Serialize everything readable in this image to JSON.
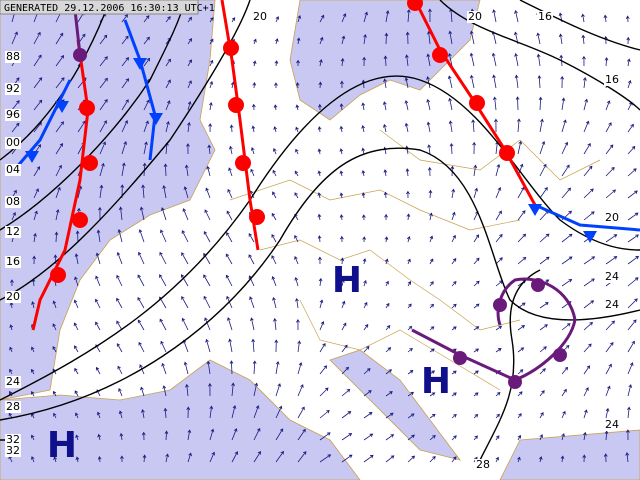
{
  "header": {
    "generated": "GENERATED 29.12.2006 16:30:13 UTC+1"
  },
  "pressure_centers": [
    {
      "label": "H"
    },
    {
      "label": "H"
    },
    {
      "label": "H"
    }
  ],
  "isobar_labels": [
    "20",
    "20",
    "16",
    "16",
    "20",
    "24",
    "24",
    "24",
    "28",
    "88",
    "92",
    "96",
    "00",
    "04",
    "08",
    "12",
    "16",
    "20",
    "24",
    "28",
    "32",
    "32"
  ]
}
